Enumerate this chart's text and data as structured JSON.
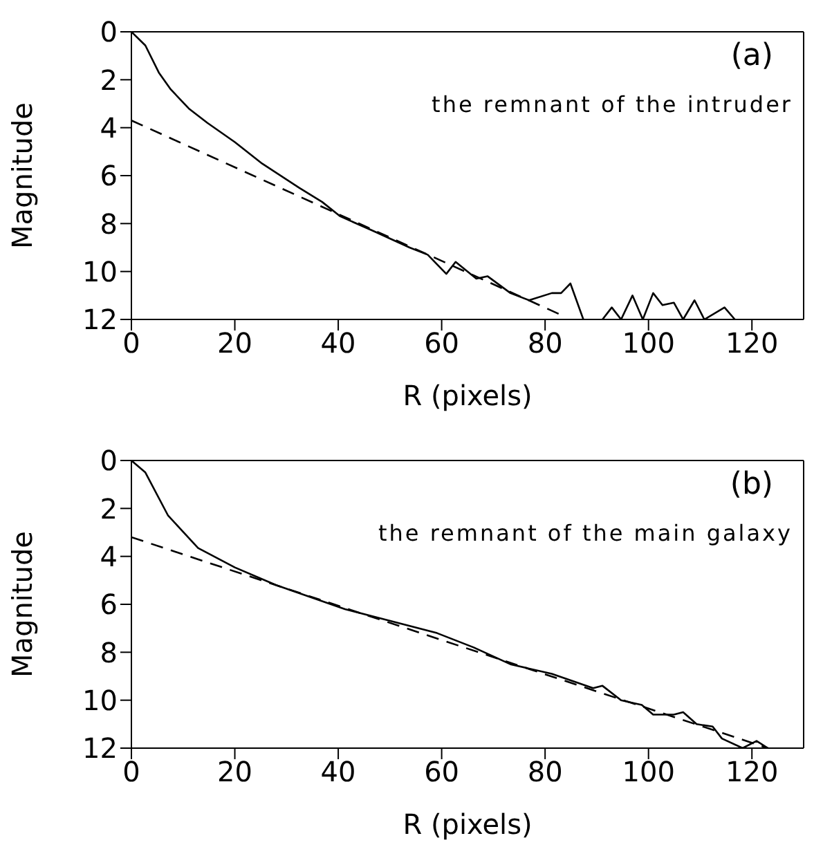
{
  "chart_data": [
    {
      "type": "line",
      "xlabel": "R (pixels)",
      "ylabel": "Magnitude",
      "annotations": [
        "(a)",
        "the remnant of the intruder"
      ],
      "xlim": [
        0,
        130
      ],
      "xticks": [
        0,
        20,
        40,
        60,
        80,
        100,
        120
      ],
      "ylim": [
        12,
        0
      ],
      "yticks": [
        0,
        2,
        4,
        6,
        8,
        10,
        12
      ],
      "series": [
        {
          "color": "#000000",
          "line_style": "solid",
          "x": [
            0,
            2.7,
            5.3,
            7.6,
            11.1,
            14.7,
            20,
            25.3,
            32.4,
            36.9,
            40.4,
            46.7,
            53.8,
            57.3,
            60.9,
            62.7,
            66.7,
            68.9,
            73.3,
            76.9,
            81.3,
            83.1,
            84.9,
            87.4,
            89,
            91.1,
            92.9,
            94.7,
            96.9,
            98.9,
            100.9,
            102.7,
            104.9,
            106.7,
            108.9,
            110.8,
            114.7,
            116.7
          ],
          "values": [
            0,
            0.57,
            1.7,
            2.4,
            3.2,
            3.8,
            4.6,
            5.5,
            6.5,
            7.1,
            7.7,
            8.3,
            9.0,
            9.3,
            10.1,
            9.6,
            10.3,
            10.2,
            10.9,
            11.2,
            10.9,
            10.9,
            10.5,
            12,
            null,
            12,
            11.5,
            12,
            11,
            12,
            10.9,
            11.4,
            11.3,
            12,
            11.2,
            12,
            11.5,
            12
          ]
        },
        {
          "color": "#000000",
          "line_style": "dashed",
          "x": [
            0,
            84
          ],
          "values": [
            3.7,
            11.9
          ]
        }
      ]
    },
    {
      "type": "line",
      "xlabel": "R (pixels)",
      "ylabel": "Magnitude",
      "annotations": [
        "(b)",
        "the remnant of the main galaxy"
      ],
      "xlim": [
        0,
        130
      ],
      "xticks": [
        0,
        20,
        40,
        60,
        80,
        100,
        120
      ],
      "ylim": [
        12,
        0
      ],
      "yticks": [
        0,
        2,
        4,
        6,
        8,
        10,
        12
      ],
      "series": [
        {
          "color": "#000000",
          "line_style": "solid",
          "x": [
            0,
            2.7,
            7.1,
            12.9,
            20,
            28,
            41.3,
            48.4,
            59.1,
            66.2,
            73.3,
            81.3,
            89.3,
            91.1,
            94.7,
            98.7,
            100.9,
            104.9,
            106.7,
            109.3,
            112.4,
            114.2,
            118.2,
            120.9,
            123.1
          ],
          "values": [
            0,
            0.5,
            2.3,
            3.65,
            4.46,
            5.2,
            6.2,
            6.6,
            7.2,
            7.8,
            8.5,
            8.9,
            9.5,
            9.4,
            10.0,
            10.2,
            10.6,
            10.6,
            10.5,
            11.0,
            11.1,
            11.6,
            12,
            11.7,
            12
          ]
        },
        {
          "color": "#000000",
          "line_style": "dashed",
          "x": [
            0,
            123.1
          ],
          "values": [
            3.2,
            12
          ]
        }
      ]
    }
  ]
}
